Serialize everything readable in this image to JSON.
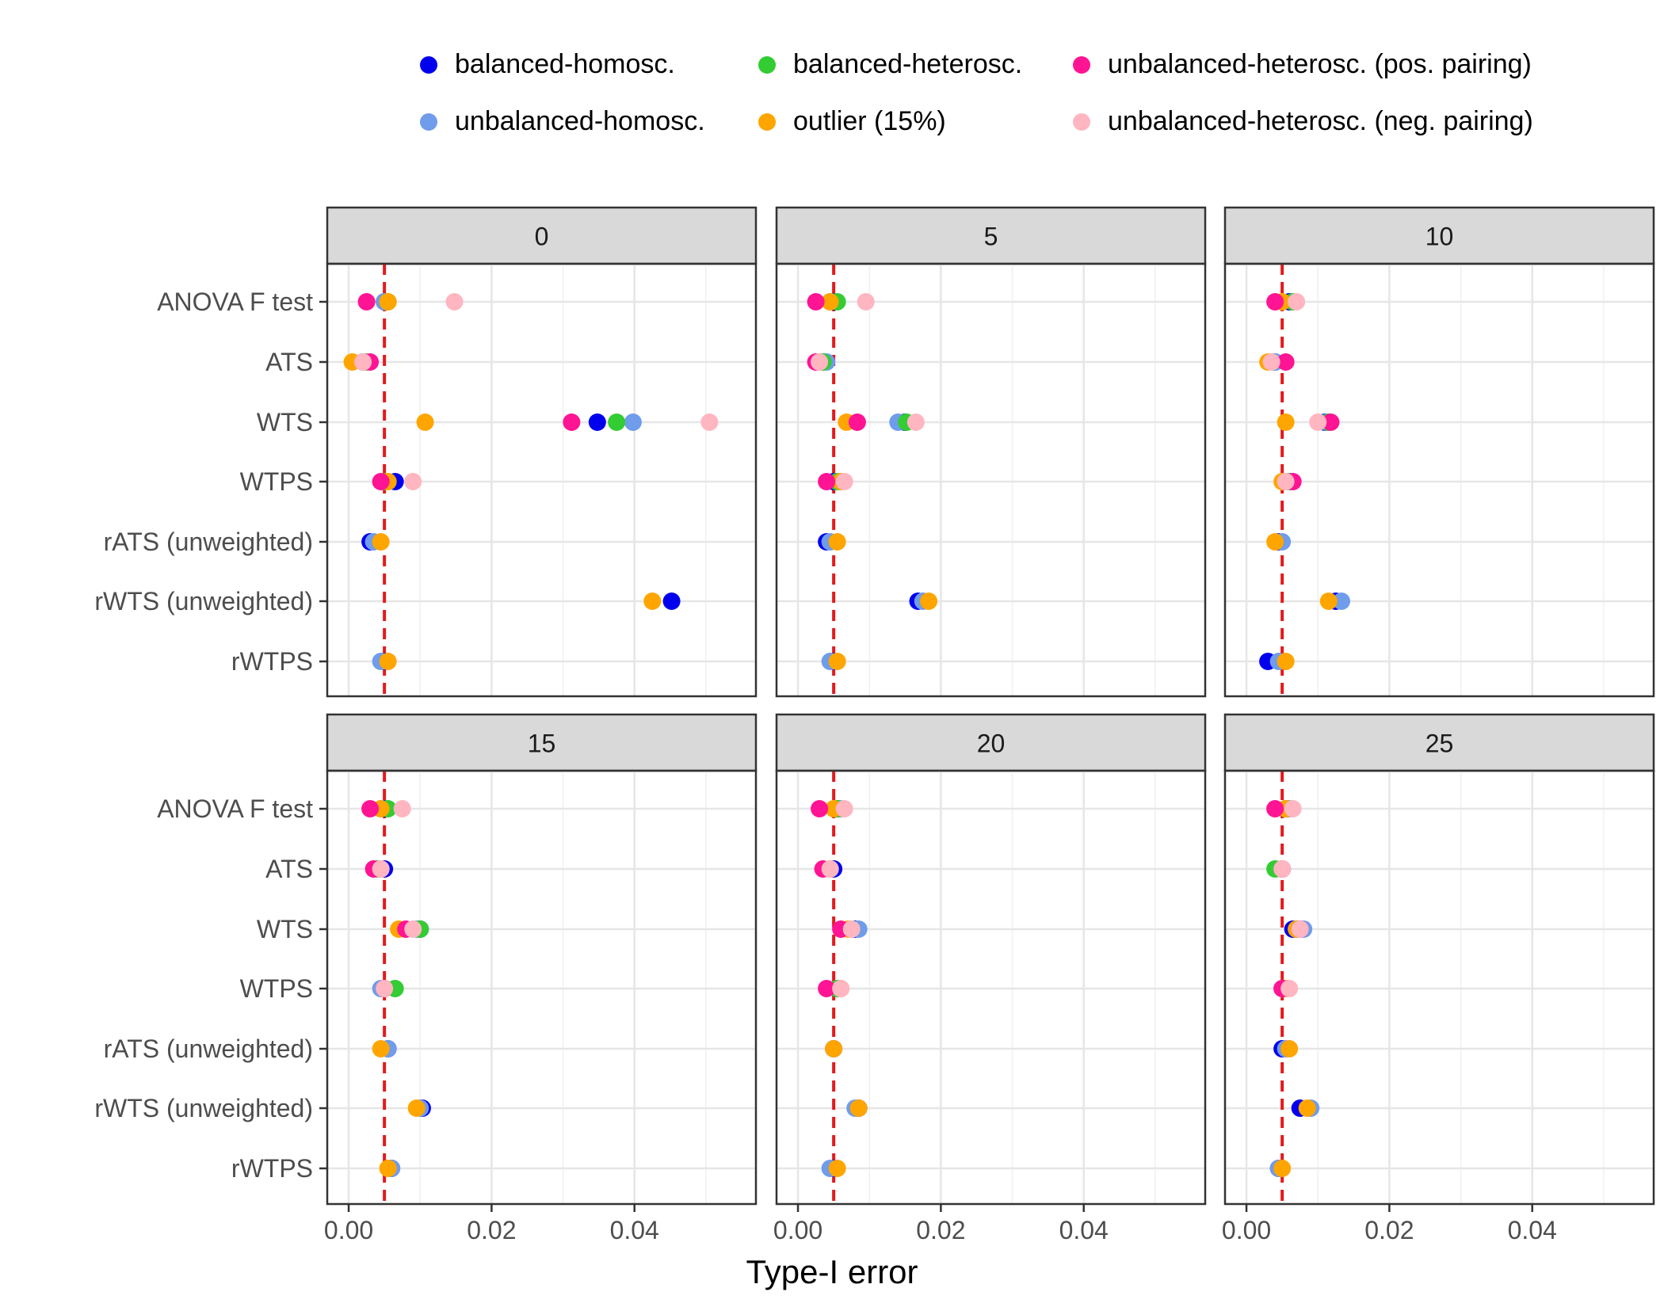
{
  "chart_data": {
    "type": "scatter",
    "xlabel": "Type-I error",
    "ylabel": "",
    "xlim": [
      -0.003,
      0.057
    ],
    "x_ticks": [
      0.0,
      0.02,
      0.04
    ],
    "x_tick_labels": [
      "0.00",
      "0.02",
      "0.04"
    ],
    "grid": true,
    "reference_line": {
      "x": 0.005,
      "color": "#e31a1c",
      "style": "dashed"
    },
    "legend_position": "top",
    "tests": [
      "ANOVA F test",
      "ATS",
      "WTS",
      "WTPS",
      "rATS (unweighted)",
      "rWTS (unweighted)",
      "rWTPS"
    ],
    "series": [
      {
        "name": "balanced-homosc.",
        "color": "#0000ee"
      },
      {
        "name": "unbalanced-homosc.",
        "color": "#6f9ceb"
      },
      {
        "name": "balanced-heterosc.",
        "color": "#33cc33"
      },
      {
        "name": "outlier (15%)",
        "color": "#ffa500"
      },
      {
        "name": "unbalanced-heterosc. (pos. pairing)",
        "color": "#ff1493"
      },
      {
        "name": "unbalanced-heterosc. (neg. pairing)",
        "color": "#ffb6c1"
      }
    ],
    "panels": [
      {
        "title": "0",
        "points": [
          [
            0.005,
            0.005,
            0.0055,
            0.0055,
            0.0025,
            0.0148
          ],
          [
            0.002,
            0.002,
            0.0025,
            0.0005,
            0.003,
            0.002
          ],
          [
            0.0348,
            0.0398,
            0.0375,
            0.0107,
            0.0312,
            0.0505
          ],
          [
            0.0065,
            0.0055,
            0.005,
            0.0055,
            0.0045,
            0.009
          ],
          [
            0.003,
            0.0035,
            null,
            0.0045,
            null,
            null
          ],
          [
            0.0452,
            null,
            null,
            0.0425,
            null,
            null
          ],
          [
            0.005,
            0.0045,
            null,
            0.0055,
            null,
            null
          ]
        ]
      },
      {
        "title": "5",
        "points": [
          [
            0.005,
            0.0045,
            0.0055,
            0.0045,
            0.0025,
            0.0095
          ],
          [
            0.0035,
            0.004,
            0.0035,
            0.003,
            0.0025,
            0.003
          ],
          [
            0.015,
            0.014,
            0.0152,
            0.0068,
            0.0083,
            0.0165
          ],
          [
            0.005,
            0.0055,
            0.0055,
            0.006,
            0.004,
            0.0065
          ],
          [
            0.004,
            0.0045,
            null,
            0.0055,
            null,
            null
          ],
          [
            0.0168,
            0.0175,
            null,
            0.0183,
            null,
            null
          ],
          [
            0.005,
            0.0045,
            null,
            0.0055,
            null,
            null
          ]
        ]
      },
      {
        "title": "10",
        "points": [
          [
            0.006,
            0.0065,
            0.0065,
            0.005,
            0.004,
            0.007
          ],
          [
            0.004,
            0.004,
            0.0035,
            0.003,
            0.0055,
            0.0035
          ],
          [
            0.011,
            0.0113,
            0.0115,
            0.0055,
            0.0118,
            0.01
          ],
          [
            0.006,
            0.0055,
            0.006,
            0.005,
            0.0065,
            0.0055
          ],
          [
            0.0045,
            0.005,
            null,
            0.004,
            null,
            null
          ],
          [
            0.0125,
            0.0133,
            null,
            0.0115,
            null,
            null
          ],
          [
            0.003,
            0.0045,
            null,
            0.0055,
            null,
            null
          ]
        ]
      },
      {
        "title": "15",
        "points": [
          [
            0.005,
            0.0045,
            0.0055,
            0.0045,
            0.003,
            0.0075
          ],
          [
            0.005,
            0.0045,
            0.004,
            0.0045,
            0.0035,
            0.0045
          ],
          [
            0.01,
            0.0095,
            0.01,
            0.007,
            0.008,
            0.009
          ],
          [
            0.005,
            0.0045,
            0.0065,
            0.005,
            0.005,
            0.005
          ],
          [
            0.0055,
            0.0055,
            null,
            0.0045,
            null,
            null
          ],
          [
            0.0103,
            0.01,
            null,
            0.0095,
            null,
            null
          ],
          [
            0.006,
            0.006,
            null,
            0.0055,
            null,
            null
          ]
        ]
      },
      {
        "title": "20",
        "points": [
          [
            0.0055,
            0.006,
            0.0055,
            0.005,
            0.003,
            0.0065
          ],
          [
            0.005,
            0.0045,
            0.0045,
            0.0045,
            0.0035,
            0.0045
          ],
          [
            0.008,
            0.0085,
            0.0075,
            0.007,
            0.006,
            0.0075
          ],
          [
            0.0055,
            0.0055,
            0.0055,
            0.006,
            0.004,
            0.006
          ],
          [
            0.005,
            0.005,
            null,
            0.005,
            null,
            null
          ],
          [
            0.0085,
            0.008,
            null,
            0.0085,
            null,
            null
          ],
          [
            0.005,
            0.0045,
            null,
            0.0055,
            null,
            null
          ]
        ]
      },
      {
        "title": "25",
        "points": [
          [
            0.0055,
            0.006,
            0.0055,
            0.0055,
            0.004,
            0.0065
          ],
          [
            0.005,
            0.005,
            0.004,
            0.005,
            0.005,
            0.005
          ],
          [
            0.0065,
            0.008,
            0.007,
            0.007,
            0.0075,
            0.0075
          ],
          [
            0.0055,
            0.005,
            0.0055,
            0.0055,
            0.005,
            0.006
          ],
          [
            0.005,
            0.0055,
            null,
            0.006,
            null,
            null
          ],
          [
            0.0075,
            0.009,
            null,
            0.0085,
            null,
            null
          ],
          [
            0.0045,
            0.0045,
            null,
            0.005,
            null,
            null
          ]
        ]
      }
    ]
  }
}
